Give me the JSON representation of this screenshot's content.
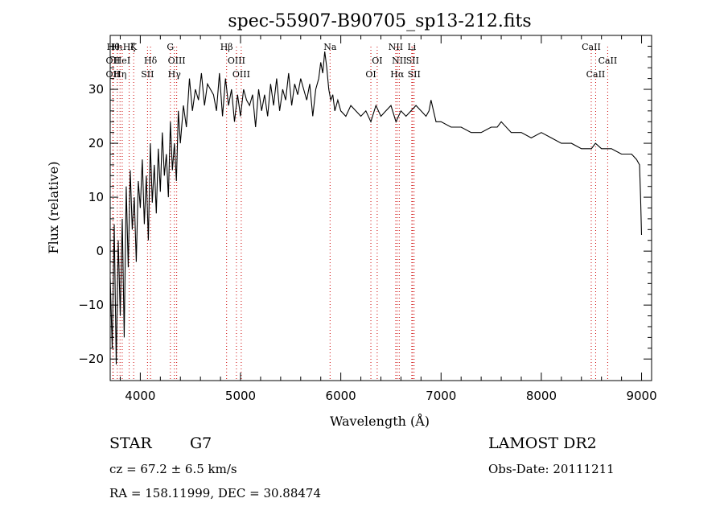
{
  "chart_data": {
    "type": "line",
    "title": "spec-55907-B90705_sp13-212.fits",
    "xlabel": "Wavelength (Å)",
    "ylabel": "Flux (relative)",
    "xlim": [
      3700,
      9100
    ],
    "ylim": [
      -24,
      40
    ],
    "xticks": [
      4000,
      5000,
      6000,
      7000,
      8000,
      9000
    ],
    "yticks": [
      -20,
      -10,
      0,
      10,
      20,
      30
    ],
    "grid": false,
    "series": [
      {
        "color": "#000000",
        "x": [
          3700,
          3720,
          3740,
          3760,
          3780,
          3800,
          3820,
          3840,
          3860,
          3880,
          3900,
          3920,
          3940,
          3960,
          3980,
          4000,
          4020,
          4040,
          4060,
          4080,
          4100,
          4120,
          4140,
          4160,
          4180,
          4200,
          4220,
          4240,
          4260,
          4280,
          4300,
          4320,
          4340,
          4360,
          4380,
          4400,
          4430,
          4460,
          4490,
          4520,
          4550,
          4580,
          4610,
          4640,
          4670,
          4700,
          4730,
          4760,
          4790,
          4820,
          4850,
          4880,
          4910,
          4940,
          4970,
          5000,
          5030,
          5060,
          5090,
          5120,
          5150,
          5180,
          5210,
          5240,
          5270,
          5300,
          5330,
          5360,
          5390,
          5420,
          5450,
          5480,
          5510,
          5540,
          5570,
          5600,
          5630,
          5660,
          5690,
          5720,
          5750,
          5780,
          5800,
          5820,
          5840,
          5860,
          5880,
          5900,
          5920,
          5940,
          5970,
          6000,
          6050,
          6100,
          6150,
          6200,
          6250,
          6300,
          6350,
          6400,
          6450,
          6500,
          6550,
          6600,
          6650,
          6700,
          6750,
          6800,
          6850,
          6880,
          6900,
          6950,
          7000,
          7100,
          7200,
          7300,
          7400,
          7500,
          7560,
          7600,
          7700,
          7800,
          7900,
          8000,
          8100,
          8200,
          8300,
          8400,
          8460,
          8500,
          8540,
          8600,
          8700,
          8800,
          8850,
          8900,
          8950,
          8980,
          8990,
          9000
        ],
        "y": [
          -5,
          -18,
          5,
          -21,
          2,
          -12,
          6,
          -16,
          12,
          -3,
          15,
          4,
          10,
          -2,
          13,
          8,
          17,
          5,
          14,
          2,
          20,
          9,
          16,
          7,
          19,
          11,
          22,
          14,
          18,
          10,
          24,
          15,
          20,
          13,
          26,
          20,
          27,
          23,
          32,
          26,
          30,
          28,
          33,
          27,
          31,
          30,
          29,
          26,
          33,
          25,
          32,
          27,
          30,
          24,
          29,
          25,
          30,
          28,
          27,
          29,
          23,
          30,
          26,
          29,
          25,
          31,
          27,
          32,
          26,
          30,
          28,
          33,
          27,
          31,
          29,
          32,
          30,
          28,
          31,
          25,
          30,
          32,
          35,
          33,
          37,
          34,
          30,
          28,
          29,
          26,
          28,
          26,
          25,
          27,
          26,
          25,
          26,
          24,
          27,
          25,
          26,
          27,
          24,
          26,
          25,
          26,
          27,
          26,
          25,
          26,
          28,
          24,
          24,
          23,
          23,
          22,
          22,
          23,
          23,
          24,
          22,
          22,
          21,
          22,
          21,
          20,
          20,
          19,
          19,
          19,
          20,
          19,
          19,
          18,
          18,
          18,
          17,
          16,
          10,
          3
        ]
      }
    ],
    "line_markers": [
      {
        "x": 3730,
        "label": "Hθ",
        "row": 0
      },
      {
        "x": 3727,
        "label": "OII",
        "row": 1
      },
      {
        "x": 3727,
        "label": "OII",
        "row": 2
      },
      {
        "x": 3771,
        "label": "Hι",
        "row": 0
      },
      {
        "x": 3798,
        "label": "Hη",
        "row": 2
      },
      {
        "x": 3820,
        "label": "HeI",
        "row": 1
      },
      {
        "x": 3889,
        "label": "Hζ",
        "row": 0
      },
      {
        "x": 3934,
        "label": "K",
        "row": 0
      },
      {
        "x": 4102,
        "label": "Hδ",
        "row": 1
      },
      {
        "x": 4072,
        "label": "SII",
        "row": 2
      },
      {
        "x": 4300,
        "label": "G",
        "row": 0
      },
      {
        "x": 4363,
        "label": "OIII",
        "row": 1
      },
      {
        "x": 4340,
        "label": "Hγ",
        "row": 2
      },
      {
        "x": 4861,
        "label": "Hβ",
        "row": 0
      },
      {
        "x": 4959,
        "label": "OIII",
        "row": 1
      },
      {
        "x": 5007,
        "label": "OIII",
        "row": 2
      },
      {
        "x": 5893,
        "label": "Na",
        "row": 0
      },
      {
        "x": 6363,
        "label": "OI",
        "row": 1
      },
      {
        "x": 6300,
        "label": "OI",
        "row": 2
      },
      {
        "x": 6548,
        "label": "NII",
        "row": 0
      },
      {
        "x": 6583,
        "label": "NII",
        "row": 1
      },
      {
        "x": 6563,
        "label": "Hα",
        "row": 2
      },
      {
        "x": 6708,
        "label": "Li",
        "row": 0
      },
      {
        "x": 6716,
        "label": "SII",
        "row": 1
      },
      {
        "x": 6731,
        "label": "SII",
        "row": 2
      },
      {
        "x": 8498,
        "label": "CaII",
        "row": 0
      },
      {
        "x": 8662,
        "label": "CaII",
        "row": 1
      },
      {
        "x": 8542,
        "label": "CaII",
        "row": 2
      }
    ],
    "marker_line_color": "#cc0000"
  },
  "info": {
    "class_label": "STAR",
    "subclass": "G7",
    "redshift": "cz = 67.2 ± 6.5 km/s",
    "coords": "RA = 158.11999, DEC =  30.88474",
    "survey": "LAMOST DR2",
    "obs_date": "Obs-Date: 20111211"
  }
}
